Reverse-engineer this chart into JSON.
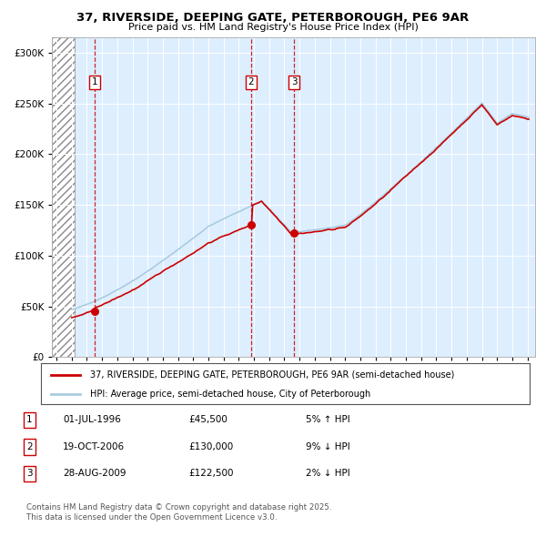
{
  "title": "37, RIVERSIDE, DEEPING GATE, PETERBOROUGH, PE6 9AR",
  "subtitle": "Price paid vs. HM Land Registry's House Price Index (HPI)",
  "ytick_values": [
    0,
    50000,
    100000,
    150000,
    200000,
    250000,
    300000
  ],
  "ylim": [
    0,
    315000
  ],
  "xlim_start": 1993.7,
  "xlim_end": 2025.5,
  "sale_dates_decimal": [
    1996.5,
    2006.8,
    2009.65
  ],
  "sale_prices": [
    45500,
    130000,
    122500
  ],
  "sale_labels": [
    "1",
    "2",
    "3"
  ],
  "sale_date_strings": [
    "01-JUL-1996",
    "19-OCT-2006",
    "28-AUG-2009"
  ],
  "sale_price_strings": [
    "£45,500",
    "£130,000",
    "£122,500"
  ],
  "sale_pct_strings": [
    "5% ↑ HPI",
    "9% ↓ HPI",
    "2% ↓ HPI"
  ],
  "property_color": "#cc0000",
  "hpi_color": "#aacce0",
  "background_color": "#ddeeff",
  "hatched_region_end": 1995.2,
  "legend_property": "37, RIVERSIDE, DEEPING GATE, PETERBOROUGH, PE6 9AR (semi-detached house)",
  "legend_hpi": "HPI: Average price, semi-detached house, City of Peterborough",
  "footer_line1": "Contains HM Land Registry data © Crown copyright and database right 2025.",
  "footer_line2": "This data is licensed under the Open Government Licence v3.0."
}
